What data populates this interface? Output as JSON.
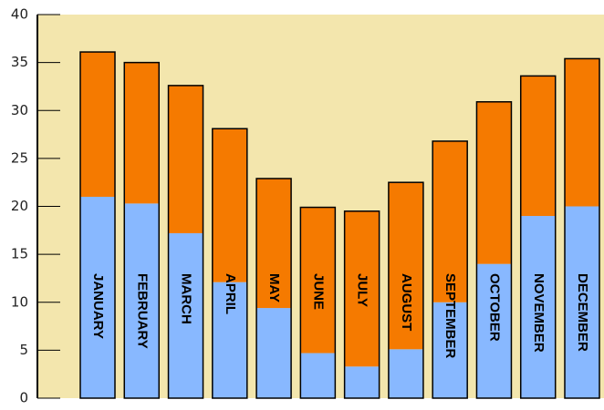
{
  "chart_data": {
    "type": "bar",
    "stacked": true,
    "title": "",
    "xlabel": "",
    "ylabel": "",
    "ylim": [
      0,
      40
    ],
    "yticks": [
      0,
      5,
      10,
      15,
      20,
      25,
      30,
      35,
      40
    ],
    "grid": false,
    "legend": "none",
    "categories": [
      "JANUARY",
      "FEBRUARY",
      "MARCH",
      "APRIL",
      "MAY",
      "JUNE",
      "JULY",
      "AUGUST",
      "SEPTEMBER",
      "OCTOBER",
      "NOVEMBER",
      "DECEMBER"
    ],
    "series": [
      {
        "color": "#88b8ff",
        "values": [
          21.0,
          20.3,
          17.2,
          12.1,
          9.4,
          4.7,
          3.3,
          5.1,
          10.0,
          14.0,
          19.0,
          20.0
        ]
      },
      {
        "color": "#f57a00",
        "values": [
          15.1,
          14.7,
          15.4,
          16.0,
          13.5,
          15.2,
          16.2,
          17.4,
          16.8,
          16.9,
          14.6,
          15.4
        ]
      }
    ],
    "colors": {
      "plot_background": "#f3e6ad",
      "bar_outline": "#000000",
      "axis": "#000000"
    }
  }
}
